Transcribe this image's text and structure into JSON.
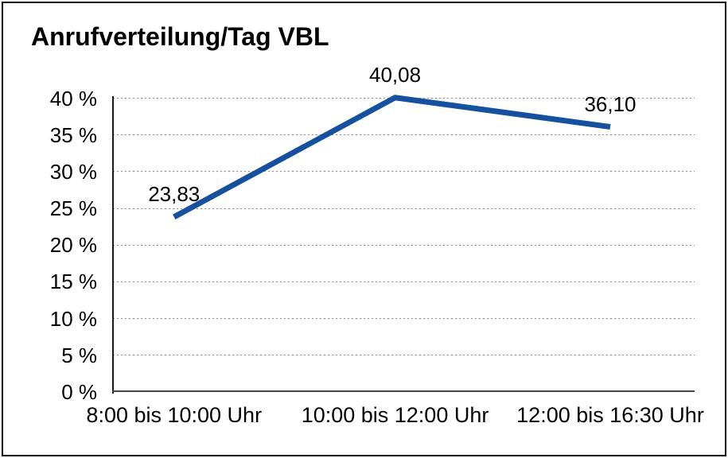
{
  "window": {
    "background": "#ffffff",
    "border_color": "#000000"
  },
  "chart_data": {
    "type": "line",
    "title": "Anrufverteilung/Tag VBL",
    "categories": [
      "8:00 bis 10:00 Uhr",
      "10:00 bis 12:00 Uhr",
      "12:00 bis 16:30 Uhr"
    ],
    "values": [
      23.83,
      40.08,
      36.1
    ],
    "data_labels": [
      "23,83",
      "40,08",
      "36,10"
    ],
    "xlabel": "",
    "ylabel": "",
    "ylim": [
      0,
      40
    ],
    "y_tick_values": [
      0,
      5,
      10,
      15,
      20,
      25,
      30,
      35,
      40
    ],
    "y_tick_labels": [
      "0 %",
      "5 %",
      "10 %",
      "15 %",
      "20 %",
      "25 %",
      "30 %",
      "35 %",
      "40 %"
    ],
    "grid": "horizontal-dotted",
    "legend_position": "none",
    "colors": {
      "line": "#15519f",
      "grid": "#8a8a8a",
      "x_axis": "#454545",
      "y_axis": "#1a1a1a",
      "text": "#000000"
    }
  }
}
